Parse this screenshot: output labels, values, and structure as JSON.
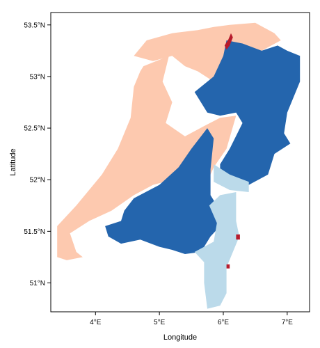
{
  "chart_data": {
    "type": "heatmap",
    "title": "",
    "xlabel": "Longitude",
    "ylabel": "Latitude",
    "xlim": [
      3.3,
      7.35
    ],
    "ylim": [
      50.72,
      53.62
    ],
    "x_ticks": [
      {
        "value": 4,
        "label": "4°E"
      },
      {
        "value": 5,
        "label": "5°E"
      },
      {
        "value": 6,
        "label": "6°E"
      },
      {
        "value": 7,
        "label": "7°E"
      }
    ],
    "y_ticks": [
      {
        "value": 51,
        "label": "51°N"
      },
      {
        "value": 51.5,
        "label": "51.5°N"
      },
      {
        "value": 52,
        "label": "52°N"
      },
      {
        "value": 52.5,
        "label": "52.5°N"
      },
      {
        "value": 53,
        "label": "53°N"
      },
      {
        "value": 53.5,
        "label": "53.5°N"
      }
    ],
    "grid": false,
    "legend": "none",
    "classes": [
      {
        "id": "peach",
        "color": "#FDC9AF"
      },
      {
        "id": "blue",
        "color": "#2465AD"
      },
      {
        "id": "lightblue",
        "color": "#BBDAEA"
      },
      {
        "id": "red",
        "color": "#B71B2C"
      }
    ],
    "regions": [
      {
        "class": "peach",
        "polygon": [
          [
            3.4,
            51.25
          ],
          [
            3.4,
            51.55
          ],
          [
            3.7,
            51.75
          ],
          [
            3.9,
            51.9
          ],
          [
            4.1,
            52.05
          ],
          [
            4.35,
            52.3
          ],
          [
            4.55,
            52.6
          ],
          [
            4.6,
            52.9
          ],
          [
            4.7,
            53.05
          ],
          [
            4.75,
            53.1
          ],
          [
            4.95,
            53.15
          ],
          [
            5.15,
            53.2
          ],
          [
            5.05,
            52.95
          ],
          [
            5.2,
            52.75
          ],
          [
            5.1,
            52.55
          ],
          [
            5.4,
            52.42
          ],
          [
            5.7,
            52.52
          ],
          [
            5.95,
            52.6
          ],
          [
            6.2,
            52.62
          ],
          [
            6.05,
            52.3
          ],
          [
            5.85,
            52.12
          ],
          [
            5.75,
            51.98
          ],
          [
            5.55,
            51.98
          ],
          [
            5.2,
            52.0
          ],
          [
            4.9,
            51.95
          ],
          [
            4.6,
            51.85
          ],
          [
            4.25,
            51.7
          ],
          [
            3.9,
            51.6
          ],
          [
            3.6,
            51.48
          ],
          [
            3.7,
            51.3
          ],
          [
            3.8,
            51.25
          ],
          [
            3.55,
            51.22
          ]
        ]
      },
      {
        "class": "peach",
        "polygon": [
          [
            4.6,
            53.2
          ],
          [
            4.8,
            53.35
          ],
          [
            5.2,
            53.42
          ],
          [
            5.6,
            53.45
          ],
          [
            5.85,
            53.48
          ],
          [
            6.1,
            53.5
          ],
          [
            6.5,
            53.52
          ],
          [
            6.8,
            53.42
          ],
          [
            6.9,
            53.35
          ],
          [
            6.6,
            53.25
          ],
          [
            6.2,
            53.15
          ],
          [
            5.85,
            52.95
          ],
          [
            5.6,
            53.05
          ],
          [
            5.4,
            53.1
          ],
          [
            5.2,
            53.2
          ],
          [
            4.9,
            53.15
          ]
        ]
      },
      {
        "class": "blue",
        "polygon": [
          [
            5.55,
            52.85
          ],
          [
            5.85,
            53.0
          ],
          [
            6.0,
            53.2
          ],
          [
            6.05,
            53.35
          ],
          [
            6.3,
            53.32
          ],
          [
            6.6,
            53.25
          ],
          [
            6.85,
            53.3
          ],
          [
            7.0,
            53.25
          ],
          [
            7.2,
            53.2
          ],
          [
            7.2,
            52.95
          ],
          [
            7.0,
            52.65
          ],
          [
            6.95,
            52.45
          ],
          [
            7.05,
            52.35
          ],
          [
            6.8,
            52.25
          ],
          [
            6.7,
            52.05
          ],
          [
            6.4,
            51.95
          ],
          [
            6.05,
            51.92
          ],
          [
            5.95,
            51.95
          ],
          [
            5.95,
            52.15
          ],
          [
            6.1,
            52.3
          ],
          [
            6.3,
            52.55
          ],
          [
            6.2,
            52.65
          ],
          [
            5.95,
            52.62
          ],
          [
            5.75,
            52.65
          ]
        ]
      },
      {
        "class": "blue",
        "polygon": [
          [
            4.6,
            51.82
          ],
          [
            5.0,
            51.95
          ],
          [
            5.3,
            52.12
          ],
          [
            5.5,
            52.3
          ],
          [
            5.75,
            52.5
          ],
          [
            5.85,
            52.4
          ],
          [
            5.8,
            52.1
          ],
          [
            5.8,
            51.85
          ],
          [
            5.95,
            51.7
          ],
          [
            5.95,
            51.55
          ],
          [
            5.8,
            51.45
          ],
          [
            5.65,
            51.3
          ],
          [
            5.4,
            51.28
          ],
          [
            5.2,
            51.32
          ],
          [
            5.0,
            51.35
          ],
          [
            4.7,
            51.42
          ],
          [
            4.4,
            51.38
          ],
          [
            4.2,
            51.45
          ],
          [
            4.15,
            51.55
          ],
          [
            4.4,
            51.6
          ],
          [
            4.45,
            51.7
          ]
        ]
      },
      {
        "class": "lightblue",
        "polygon": [
          [
            5.78,
            51.75
          ],
          [
            5.95,
            51.85
          ],
          [
            6.2,
            51.88
          ],
          [
            6.2,
            51.6
          ],
          [
            6.25,
            51.45
          ],
          [
            6.15,
            51.3
          ],
          [
            6.05,
            51.15
          ],
          [
            6.05,
            50.9
          ],
          [
            5.95,
            50.78
          ],
          [
            5.75,
            50.75
          ],
          [
            5.7,
            51.0
          ],
          [
            5.7,
            51.2
          ],
          [
            5.55,
            51.3
          ],
          [
            5.85,
            51.4
          ],
          [
            5.9,
            51.58
          ]
        ]
      },
      {
        "class": "lightblue",
        "polygon": [
          [
            5.85,
            52.15
          ],
          [
            6.1,
            52.05
          ],
          [
            6.4,
            51.98
          ],
          [
            6.4,
            51.88
          ],
          [
            6.1,
            51.9
          ],
          [
            5.85,
            51.98
          ]
        ]
      },
      {
        "class": "red",
        "polygon": [
          [
            6.02,
            53.3
          ],
          [
            6.08,
            53.36
          ],
          [
            6.12,
            53.42
          ],
          [
            6.15,
            53.38
          ],
          [
            6.1,
            53.3
          ],
          [
            6.05,
            53.26
          ]
        ]
      },
      {
        "class": "red",
        "polygon": [
          [
            6.2,
            51.47
          ],
          [
            6.26,
            51.47
          ],
          [
            6.26,
            51.42
          ],
          [
            6.2,
            51.42
          ]
        ]
      },
      {
        "class": "red",
        "polygon": [
          [
            6.05,
            51.18
          ],
          [
            6.1,
            51.18
          ],
          [
            6.1,
            51.14
          ],
          [
            6.05,
            51.14
          ]
        ]
      }
    ]
  }
}
